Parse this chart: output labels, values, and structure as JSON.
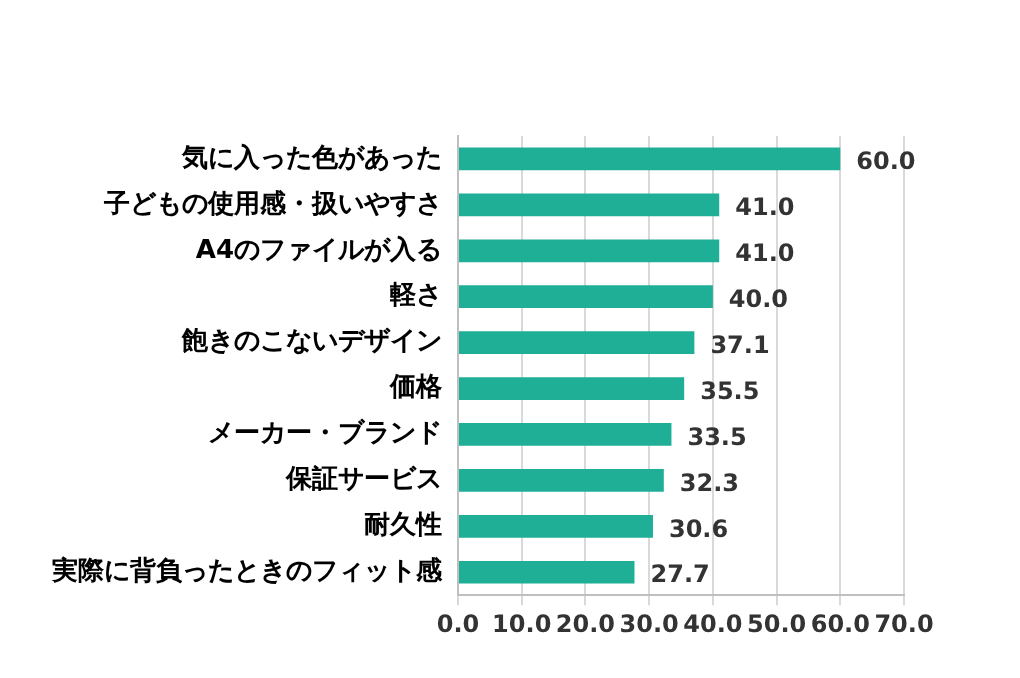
{
  "chart_data": {
    "type": "bar",
    "orientation": "horizontal",
    "categories": [
      "気に入った色があった",
      "子どもの使用感・扱いやすさ",
      "A4のファイルが入る",
      "軽さ",
      "飽きのこないデザイン",
      "価格",
      "メーカー・ブランド",
      "保証サービス",
      "耐久性",
      "実際に背負ったときのフィット感"
    ],
    "values": [
      60.0,
      41.0,
      41.0,
      40.0,
      37.1,
      35.5,
      33.5,
      32.3,
      30.6,
      27.7
    ],
    "value_labels": [
      "60.0",
      "41.0",
      "41.0",
      "40.0",
      "37.1",
      "35.5",
      "33.5",
      "32.3",
      "30.6",
      "27.7"
    ],
    "color": "#1fae96",
    "xlim": [
      0,
      70
    ],
    "xticks": [
      {
        "value": 0,
        "label": "0.0"
      },
      {
        "value": 10,
        "label": "10.0"
      },
      {
        "value": 20,
        "label": "20.0"
      },
      {
        "value": 30,
        "label": "30.0"
      },
      {
        "value": 40,
        "label": "40.0"
      },
      {
        "value": 50,
        "label": "50.0"
      },
      {
        "value": 60,
        "label": "60.0"
      },
      {
        "value": 70,
        "label": "70.0"
      }
    ],
    "grid": "x",
    "legend": false
  }
}
